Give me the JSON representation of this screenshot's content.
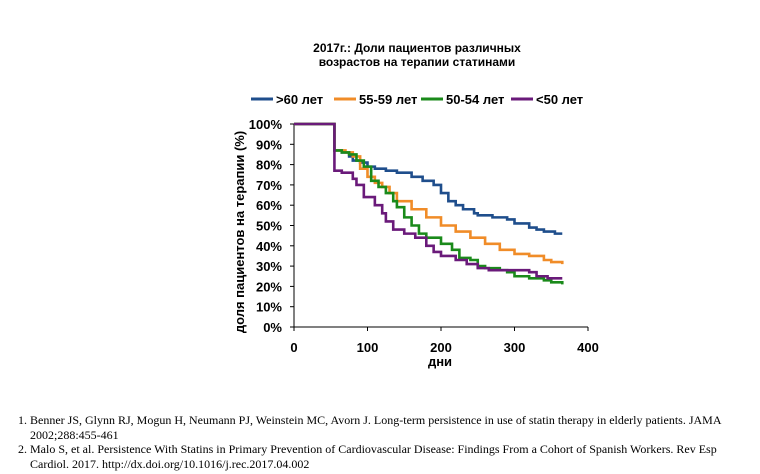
{
  "chart_data": {
    "type": "line",
    "title": [
      "2017г.:  Доли пациентов различных",
      "возрастов на терапии статинами"
    ],
    "xlabel": "дни",
    "ylabel": "доля пациентов на терапии (%)",
    "xlim": [
      0,
      400
    ],
    "ylim": [
      0,
      100
    ],
    "x_ticks": [
      "0",
      "100",
      "200",
      "300",
      "400"
    ],
    "y_ticks": [
      "0%",
      "10%",
      "20%",
      "30%",
      "40%",
      "50%",
      "60%",
      "70%",
      "80%",
      "90%",
      "100%"
    ],
    "legend_position": "top",
    "series": [
      {
        "name": ">60 лет",
        "color": "#1f4e8c",
        "points": [
          [
            0,
            100
          ],
          [
            55,
            100
          ],
          [
            55,
            87
          ],
          [
            65,
            86
          ],
          [
            75,
            84
          ],
          [
            80,
            82
          ],
          [
            90,
            81
          ],
          [
            100,
            79
          ],
          [
            110,
            78
          ],
          [
            125,
            77
          ],
          [
            140,
            76
          ],
          [
            160,
            74
          ],
          [
            175,
            72
          ],
          [
            190,
            70
          ],
          [
            200,
            66
          ],
          [
            210,
            62
          ],
          [
            220,
            60
          ],
          [
            230,
            58
          ],
          [
            245,
            56
          ],
          [
            250,
            55
          ],
          [
            270,
            54
          ],
          [
            290,
            53
          ],
          [
            300,
            51
          ],
          [
            320,
            49
          ],
          [
            330,
            48
          ],
          [
            340,
            47
          ],
          [
            355,
            46
          ],
          [
            365,
            46
          ]
        ]
      },
      {
        "name": "55-59 лет",
        "color": "#f08c28",
        "points": [
          [
            0,
            100
          ],
          [
            55,
            100
          ],
          [
            55,
            87
          ],
          [
            70,
            86
          ],
          [
            80,
            84
          ],
          [
            90,
            78
          ],
          [
            100,
            74
          ],
          [
            110,
            71
          ],
          [
            120,
            69
          ],
          [
            130,
            66
          ],
          [
            140,
            62
          ],
          [
            160,
            58
          ],
          [
            180,
            54
          ],
          [
            200,
            50
          ],
          [
            220,
            47
          ],
          [
            240,
            44
          ],
          [
            260,
            41
          ],
          [
            280,
            38
          ],
          [
            300,
            36
          ],
          [
            320,
            35
          ],
          [
            340,
            33
          ],
          [
            350,
            32
          ],
          [
            365,
            31
          ]
        ]
      },
      {
        "name": "50-54 лет",
        "color": "#1a8a1a",
        "points": [
          [
            0,
            100
          ],
          [
            55,
            100
          ],
          [
            55,
            87
          ],
          [
            65,
            86
          ],
          [
            75,
            85
          ],
          [
            85,
            82
          ],
          [
            95,
            79
          ],
          [
            105,
            72
          ],
          [
            115,
            69
          ],
          [
            125,
            66
          ],
          [
            135,
            62
          ],
          [
            140,
            59
          ],
          [
            150,
            54
          ],
          [
            160,
            50
          ],
          [
            170,
            46
          ],
          [
            180,
            44
          ],
          [
            200,
            41
          ],
          [
            215,
            38
          ],
          [
            225,
            34
          ],
          [
            240,
            33
          ],
          [
            250,
            30
          ],
          [
            260,
            29
          ],
          [
            280,
            28
          ],
          [
            290,
            27
          ],
          [
            300,
            25
          ],
          [
            320,
            24
          ],
          [
            340,
            23
          ],
          [
            350,
            22
          ],
          [
            365,
            21
          ]
        ]
      },
      {
        "name": "<50 лет",
        "color": "#6a1a7a",
        "points": [
          [
            0,
            100
          ],
          [
            55,
            100
          ],
          [
            55,
            77
          ],
          [
            65,
            76
          ],
          [
            80,
            73
          ],
          [
            85,
            70
          ],
          [
            95,
            64
          ],
          [
            110,
            60
          ],
          [
            120,
            56
          ],
          [
            125,
            52
          ],
          [
            135,
            48
          ],
          [
            150,
            46
          ],
          [
            165,
            44
          ],
          [
            180,
            40
          ],
          [
            190,
            37
          ],
          [
            200,
            35
          ],
          [
            220,
            33
          ],
          [
            235,
            31
          ],
          [
            250,
            29
          ],
          [
            265,
            28
          ],
          [
            290,
            28
          ],
          [
            310,
            28
          ],
          [
            320,
            27
          ],
          [
            330,
            25
          ],
          [
            345,
            24
          ],
          [
            355,
            24
          ],
          [
            365,
            24
          ]
        ]
      }
    ]
  },
  "references": [
    {
      "num": "1.",
      "text": "Benner JS, Glynn RJ, Mogun H, Neumann PJ, Weinstein MC, Avorn J. Long-term persistence in use of statin therapy in elderly patients. JAMA 2002;288:455-461"
    },
    {
      "num": "2.",
      "text": "Malo S, et al. Persistence With Statins in Primary Prevention of Cardiovascular Disease: Findings From a Cohort of Spanish Workers. Rev Esp Cardiol. 2017. http://dx.doi.org/10.1016/j.rec.2017.04.002"
    }
  ]
}
